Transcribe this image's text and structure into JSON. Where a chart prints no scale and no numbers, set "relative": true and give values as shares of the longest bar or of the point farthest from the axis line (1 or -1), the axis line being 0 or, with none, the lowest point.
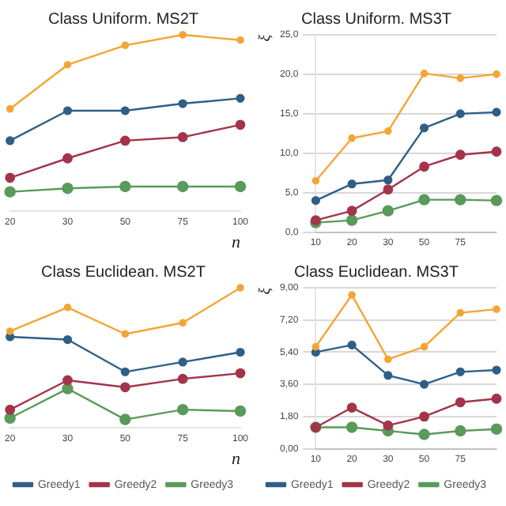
{
  "chart_data": [
    {
      "type": "line",
      "title": "Class Uniform. MS2T",
      "xlabel": "n",
      "relative": true,
      "categories": [
        "20",
        "30",
        "50",
        "75",
        "100"
      ],
      "marker": "circle",
      "legend": false,
      "series": [
        {
          "color": "#f5a535",
          "values": [
            0.58,
            0.83,
            0.94,
            1,
            0.97
          ]
        },
        {
          "color": "#2f5f86",
          "values": [
            0.4,
            0.57,
            0.57,
            0.61,
            0.64
          ]
        },
        {
          "color": "#a3344a",
          "values": [
            0.19,
            0.3,
            0.4,
            0.42,
            0.49
          ]
        },
        {
          "color": "#5a9a5a",
          "values": [
            0.11,
            0.13,
            0.14,
            0.14,
            0.14
          ]
        }
      ]
    },
    {
      "type": "line",
      "title": "Class Uniform. MS3T",
      "ylabel": "ξ",
      "categories": [
        "10",
        "20",
        "30",
        "50",
        "75",
        null
      ],
      "ylim": [
        0,
        25
      ],
      "yticks": [
        {
          "value": 0,
          "label": "0,0"
        },
        {
          "value": 5,
          "label": "5,0"
        },
        {
          "value": 10,
          "label": "10,0"
        },
        {
          "value": 15,
          "label": "15,0"
        },
        {
          "value": 20,
          "label": "20,0"
        },
        {
          "value": 25,
          "label": "25,0"
        }
      ],
      "grid": "y",
      "marker": "circle",
      "legend": false,
      "series": [
        {
          "color": "#f5a535",
          "values": [
            6.5,
            11.9,
            12.8,
            20.1,
            19.5,
            20.0
          ]
        },
        {
          "color": "#2f5f86",
          "values": [
            4.0,
            6.1,
            6.6,
            13.2,
            15.0,
            15.2
          ]
        },
        {
          "color": "#a3344a",
          "values": [
            1.5,
            2.7,
            5.4,
            8.3,
            9.8,
            10.2
          ]
        },
        {
          "color": "#5a9a5a",
          "values": [
            1.2,
            1.5,
            2.7,
            4.1,
            4.1,
            4.0
          ]
        }
      ]
    },
    {
      "type": "line",
      "title": "Class Euclidean. MS2T",
      "xlabel": "n",
      "relative": true,
      "categories": [
        "20",
        "30",
        "50",
        "75",
        "100"
      ],
      "marker": "circle",
      "legend": "bottom",
      "series": [
        {
          "color": "#f5a535",
          "values": [
            0.69,
            0.86,
            0.67,
            0.75,
            1
          ]
        },
        {
          "name": "Greedy1",
          "color": "#2f5f86",
          "values": [
            0.65,
            0.63,
            0.4,
            0.47,
            0.54
          ]
        },
        {
          "name": "Greedy2",
          "color": "#a3344a",
          "values": [
            0.13,
            0.34,
            0.29,
            0.35,
            0.39
          ]
        },
        {
          "name": "Greedy3",
          "color": "#5a9a5a",
          "values": [
            0.07,
            0.28,
            0.06,
            0.13,
            0.12
          ]
        }
      ]
    },
    {
      "type": "line",
      "title": "Class Euclidean. MS3T",
      "ylabel": "ξ",
      "categories": [
        "10",
        "20",
        "30",
        "50",
        "75",
        null
      ],
      "ylim": [
        0,
        9
      ],
      "yticks": [
        {
          "value": 0,
          "label": "0,00"
        },
        {
          "value": 1.8,
          "label": "1,80"
        },
        {
          "value": 3.6,
          "label": "3,60"
        },
        {
          "value": 5.4,
          "label": "5,40"
        },
        {
          "value": 7.2,
          "label": "7,20"
        },
        {
          "value": 9,
          "label": "9,00"
        }
      ],
      "grid": "y",
      "marker": "circle",
      "legend": "bottom",
      "series": [
        {
          "color": "#f5a535",
          "values": [
            5.7,
            8.6,
            5.0,
            5.7,
            7.6,
            7.8
          ]
        },
        {
          "name": "Greedy1",
          "color": "#2f5f86",
          "values": [
            5.4,
            5.8,
            4.1,
            3.6,
            4.3,
            4.4
          ]
        },
        {
          "name": "Greedy2",
          "color": "#a3344a",
          "values": [
            1.2,
            2.3,
            1.3,
            1.8,
            2.6,
            2.8
          ]
        },
        {
          "name": "Greedy3",
          "color": "#5a9a5a",
          "values": [
            1.2,
            1.2,
            1.0,
            0.8,
            1.0,
            1.1
          ]
        }
      ]
    }
  ]
}
